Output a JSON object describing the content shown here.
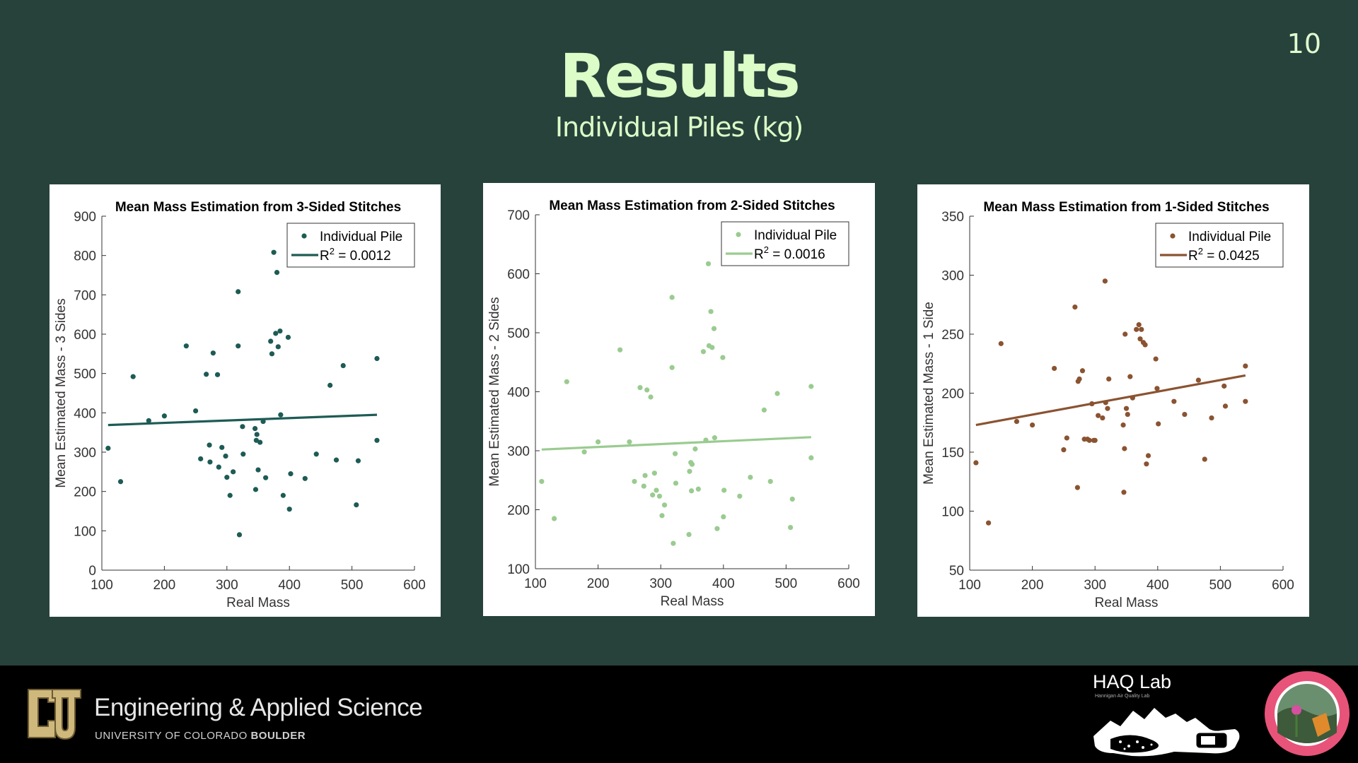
{
  "page_number": "10",
  "title": "Results",
  "subtitle": "Individual Piles (kg)",
  "footer": {
    "school": "Engineering & Applied Science",
    "university_prefix": "UNIVERSITY OF COLORADO ",
    "university_bold": "BOULDER",
    "lab_name": "HAQ Lab",
    "lab_sub": "Hannigan Air Quality Lab"
  },
  "chart_data": [
    {
      "type": "scatter",
      "title": "Mean Mass Estimation from 3-Sided Stitches",
      "xlabel": "Real Mass",
      "ylabel": "Mean Estimated Mass - 3 Sides",
      "xlim": [
        100,
        600
      ],
      "ylim": [
        0,
        900
      ],
      "xticks": [
        100,
        200,
        300,
        400,
        500,
        600
      ],
      "yticks": [
        0,
        100,
        200,
        300,
        400,
        500,
        600,
        700,
        800,
        900
      ],
      "color": "#1e5b55",
      "legend": {
        "position": "top-right",
        "points_label": "Individual Pile",
        "fit_label_prefix": "R",
        "fit_label_sup": "2",
        "fit_label_suffix": " = 0.0012"
      },
      "fit": {
        "x": [
          110,
          540
        ],
        "y": [
          369,
          395
        ]
      },
      "points": [
        [
          110,
          310
        ],
        [
          130,
          225
        ],
        [
          150,
          492
        ],
        [
          175,
          380
        ],
        [
          200,
          392
        ],
        [
          235,
          570
        ],
        [
          250,
          405
        ],
        [
          258,
          283
        ],
        [
          267,
          498
        ],
        [
          272,
          318
        ],
        [
          273,
          275
        ],
        [
          278,
          552
        ],
        [
          285,
          497
        ],
        [
          287,
          262
        ],
        [
          292,
          312
        ],
        [
          298,
          290
        ],
        [
          300,
          236
        ],
        [
          305,
          190
        ],
        [
          310,
          250
        ],
        [
          318,
          570
        ],
        [
          318,
          708
        ],
        [
          320,
          90
        ],
        [
          325,
          365
        ],
        [
          326,
          295
        ],
        [
          345,
          360
        ],
        [
          346,
          205
        ],
        [
          347,
          330
        ],
        [
          348,
          345
        ],
        [
          350,
          255
        ],
        [
          353,
          325
        ],
        [
          358,
          378
        ],
        [
          362,
          235
        ],
        [
          370,
          582
        ],
        [
          372,
          550
        ],
        [
          375,
          808
        ],
        [
          378,
          602
        ],
        [
          380,
          757
        ],
        [
          382,
          568
        ],
        [
          385,
          608
        ],
        [
          386,
          395
        ],
        [
          390,
          190
        ],
        [
          398,
          592
        ],
        [
          400,
          155
        ],
        [
          402,
          245
        ],
        [
          425,
          233
        ],
        [
          443,
          295
        ],
        [
          465,
          470
        ],
        [
          475,
          280
        ],
        [
          486,
          520
        ],
        [
          507,
          166
        ],
        [
          510,
          278
        ],
        [
          540,
          538
        ],
        [
          540,
          330
        ]
      ]
    },
    {
      "type": "scatter",
      "title": "Mean Mass Estimation from 2-Sided Stitches",
      "xlabel": "Real Mass",
      "ylabel": "Mean Estimated Mass - 2 Sides",
      "xlim": [
        100,
        600
      ],
      "ylim": [
        100,
        700
      ],
      "xticks": [
        100,
        200,
        300,
        400,
        500,
        600
      ],
      "yticks": [
        100,
        200,
        300,
        400,
        500,
        600,
        700
      ],
      "color": "#9acb90",
      "legend": {
        "position": "top-right",
        "points_label": "Individual Pile",
        "fit_label_prefix": "R",
        "fit_label_sup": "2",
        "fit_label_suffix": " = 0.0016"
      },
      "fit": {
        "x": [
          110,
          540
        ],
        "y": [
          302,
          323
        ]
      },
      "points": [
        [
          110,
          248
        ],
        [
          130,
          185
        ],
        [
          150,
          417
        ],
        [
          178,
          298
        ],
        [
          200,
          315
        ],
        [
          235,
          471
        ],
        [
          250,
          315
        ],
        [
          258,
          248
        ],
        [
          267,
          407
        ],
        [
          273,
          240
        ],
        [
          275,
          258
        ],
        [
          278,
          403
        ],
        [
          284,
          391
        ],
        [
          287,
          225
        ],
        [
          290,
          262
        ],
        [
          293,
          233
        ],
        [
          298,
          223
        ],
        [
          302,
          190
        ],
        [
          306,
          208
        ],
        [
          318,
          441
        ],
        [
          318,
          560
        ],
        [
          320,
          143
        ],
        [
          323,
          295
        ],
        [
          324,
          245
        ],
        [
          345,
          158
        ],
        [
          346,
          265
        ],
        [
          348,
          280
        ],
        [
          349,
          232
        ],
        [
          350,
          277
        ],
        [
          355,
          303
        ],
        [
          360,
          235
        ],
        [
          368,
          468
        ],
        [
          372,
          318
        ],
        [
          376,
          617
        ],
        [
          377,
          478
        ],
        [
          380,
          536
        ],
        [
          382,
          475
        ],
        [
          385,
          507
        ],
        [
          386,
          322
        ],
        [
          390,
          168
        ],
        [
          399,
          458
        ],
        [
          400,
          188
        ],
        [
          401,
          233
        ],
        [
          426,
          223
        ],
        [
          443,
          255
        ],
        [
          465,
          369
        ],
        [
          475,
          248
        ],
        [
          486,
          397
        ],
        [
          507,
          170
        ],
        [
          510,
          218
        ],
        [
          540,
          409
        ],
        [
          540,
          288
        ]
      ]
    },
    {
      "type": "scatter",
      "title": "Mean Mass Estimation from 1-Sided Stitches",
      "xlabel": "Real Mass",
      "ylabel": "Mean Estimated Mass - 1 Side",
      "xlim": [
        100,
        600
      ],
      "ylim": [
        50,
        350
      ],
      "xticks": [
        100,
        200,
        300,
        400,
        500,
        600
      ],
      "yticks": [
        50,
        100,
        150,
        200,
        250,
        300,
        350
      ],
      "color": "#8a5331",
      "legend": {
        "position": "top-right",
        "points_label": "Individual Pile",
        "fit_label_prefix": "R",
        "fit_label_sup": "2",
        "fit_label_suffix": " = 0.0425"
      },
      "fit": {
        "x": [
          110,
          540
        ],
        "y": [
          173,
          215
        ]
      },
      "points": [
        [
          110,
          141
        ],
        [
          130,
          90
        ],
        [
          150,
          242
        ],
        [
          175,
          176
        ],
        [
          200,
          173
        ],
        [
          235,
          221
        ],
        [
          250,
          152
        ],
        [
          255,
          162
        ],
        [
          268,
          273
        ],
        [
          272,
          120
        ],
        [
          273,
          210
        ],
        [
          275,
          212
        ],
        [
          280,
          219
        ],
        [
          283,
          161
        ],
        [
          288,
          161
        ],
        [
          291,
          160
        ],
        [
          295,
          191
        ],
        [
          298,
          160
        ],
        [
          300,
          160
        ],
        [
          305,
          181
        ],
        [
          312,
          179
        ],
        [
          316,
          295
        ],
        [
          317,
          192
        ],
        [
          320,
          187
        ],
        [
          322,
          212
        ],
        [
          345,
          173
        ],
        [
          346,
          116
        ],
        [
          347,
          153
        ],
        [
          348,
          250
        ],
        [
          350,
          187
        ],
        [
          352,
          182
        ],
        [
          356,
          214
        ],
        [
          360,
          196
        ],
        [
          366,
          254
        ],
        [
          370,
          258
        ],
        [
          372,
          246
        ],
        [
          374,
          254
        ],
        [
          377,
          243
        ],
        [
          380,
          241
        ],
        [
          382,
          140
        ],
        [
          385,
          147
        ],
        [
          397,
          229
        ],
        [
          399,
          204
        ],
        [
          401,
          174
        ],
        [
          426,
          193
        ],
        [
          443,
          182
        ],
        [
          465,
          211
        ],
        [
          475,
          144
        ],
        [
          486,
          179
        ],
        [
          506,
          206
        ],
        [
          508,
          189
        ],
        [
          540,
          223
        ],
        [
          540,
          193
        ]
      ]
    }
  ]
}
